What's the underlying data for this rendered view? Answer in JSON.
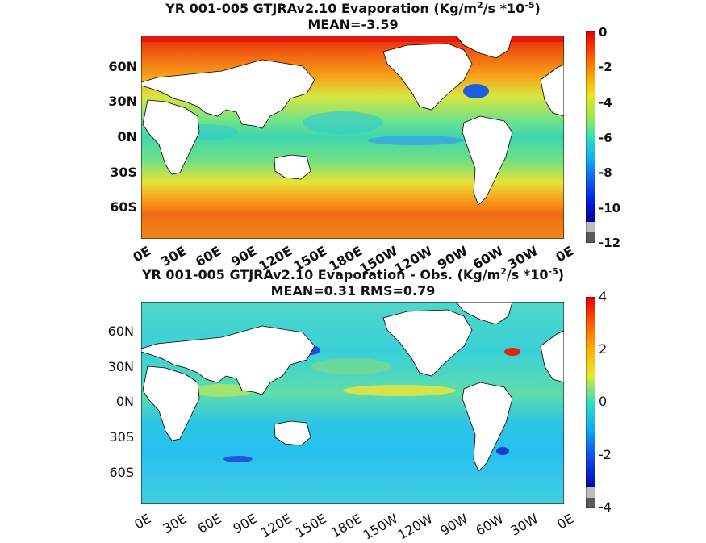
{
  "chart_data": [
    {
      "type": "heatmap",
      "title_main": "YR 001-005 GTJRAv2.10  Evaporation (Kg/m",
      "title_sup1": "2",
      "title_mid": "/s *10",
      "title_sup2": "-5",
      "title_end": ")",
      "subtitle": "MEAN=-3.59",
      "mean": -3.59,
      "yticks": [
        "60N",
        "30N",
        "0N",
        "30S",
        "60S"
      ],
      "xticks": [
        "0E",
        "30E",
        "60E",
        "90E",
        "120E",
        "150E",
        "180E",
        "150W",
        "120W",
        "90W",
        "60W",
        "30W",
        "0E"
      ],
      "colorbar": {
        "ticks": [
          "0",
          "-2",
          "-4",
          "-6",
          "-8",
          "-10",
          "-12"
        ],
        "range": [
          -12,
          0
        ]
      }
    },
    {
      "type": "heatmap",
      "title_main": "YR 001-005 GTJRAv2.10 Evaporation - Obs. (Kg/m",
      "title_sup1": "2",
      "title_mid": "/s *10",
      "title_sup2": "-5",
      "title_end": ")",
      "subtitle": "MEAN=0.31   RMS=0.79",
      "mean": 0.31,
      "rms": 0.79,
      "yticks": [
        "60N",
        "30N",
        "0N",
        "30S",
        "60S"
      ],
      "xticks": [
        "0E",
        "30E",
        "60E",
        "90E",
        "120E",
        "150E",
        "180E",
        "150W",
        "120W",
        "90W",
        "60W",
        "30W",
        "0E"
      ],
      "colorbar": {
        "ticks": [
          "4",
          "2",
          "0",
          "-2",
          "-4"
        ],
        "range": [
          -4,
          4
        ]
      }
    }
  ]
}
